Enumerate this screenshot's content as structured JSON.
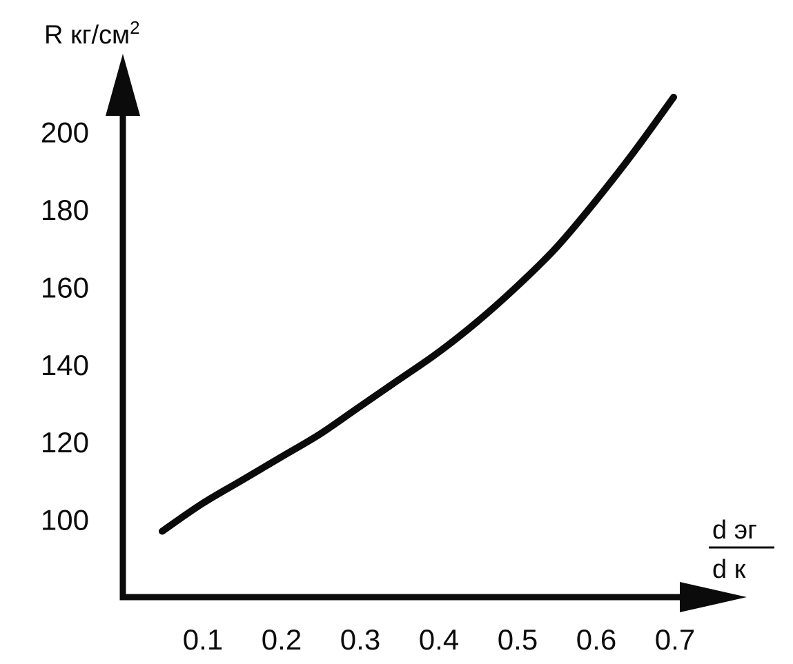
{
  "chart_data": {
    "type": "line",
    "title": "",
    "ylabel": {
      "main": "R кг/см",
      "superscript": "2"
    },
    "xlabel": {
      "numerator": "d эг",
      "denominator": "d к"
    },
    "xlim": [
      0,
      0.7
    ],
    "ylim": [
      80,
      210
    ],
    "xticks": [
      0.1,
      0.2,
      0.3,
      0.4,
      0.5,
      0.6,
      0.7
    ],
    "xtick_labels": [
      "0.1",
      "0.2",
      "0.3",
      "0.4",
      "0.5",
      "0.6",
      "0.7"
    ],
    "yticks": [
      100,
      120,
      140,
      160,
      180,
      200
    ],
    "ytick_labels": [
      "100",
      "120",
      "140",
      "160",
      "180",
      "200"
    ],
    "grid": false,
    "series": [
      {
        "x": [
          0.05,
          0.1,
          0.15,
          0.2,
          0.25,
          0.3,
          0.35,
          0.4,
          0.45,
          0.5,
          0.55,
          0.6,
          0.65,
          0.7
        ],
        "y": [
          97,
          104,
          110,
          116,
          122,
          129,
          136,
          143,
          151,
          160,
          170,
          182,
          195,
          209
        ]
      }
    ],
    "colors": {
      "ink": "#0b0b0b",
      "background": "#ffffff"
    }
  }
}
